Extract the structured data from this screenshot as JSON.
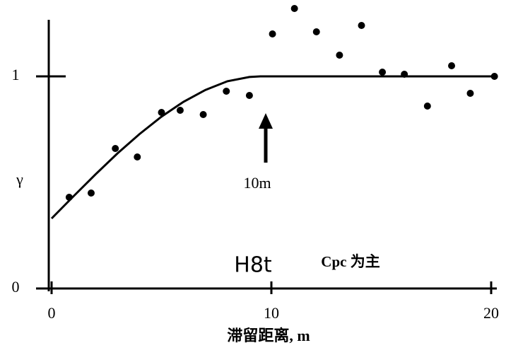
{
  "chart_data": {
    "type": "scatter",
    "y_label": "γ",
    "x_label": "滞留距离, m",
    "annotations": [
      "10m",
      "H8t",
      "Cpc 为主"
    ],
    "xlim": [
      0,
      20
    ],
    "xticks": [
      0,
      10,
      20
    ],
    "ylim": [
      0,
      1.3
    ],
    "yticks": [
      0,
      1
    ],
    "grid": false,
    "series": [
      {
        "mode": "markers",
        "color": "#000000",
        "x": [
          0.8,
          1.8,
          2.9,
          3.9,
          5,
          5.85,
          6.9,
          7.95,
          9,
          10.05,
          11.05,
          12.05,
          13.1,
          14.1,
          15.05,
          16.05,
          17.1,
          18.2,
          19.05,
          20.15
        ],
        "values": [
          0.43,
          0.45,
          0.66,
          0.62,
          0.83,
          0.84,
          0.82,
          0.93,
          0.91,
          1.2,
          1.32,
          1.21,
          1.1,
          1.24,
          1.02,
          1.01,
          0.86,
          1.05,
          0.92,
          1.0
        ]
      },
      {
        "mode": "line",
        "color": "#000000",
        "x": [
          0,
          1,
          2,
          3,
          4,
          5,
          6,
          7,
          8,
          9,
          9.5,
          20
        ],
        "values": [
          0.33,
          0.435,
          0.538,
          0.637,
          0.728,
          0.81,
          0.88,
          0.936,
          0.977,
          0.997,
          1,
          1
        ]
      }
    ]
  }
}
